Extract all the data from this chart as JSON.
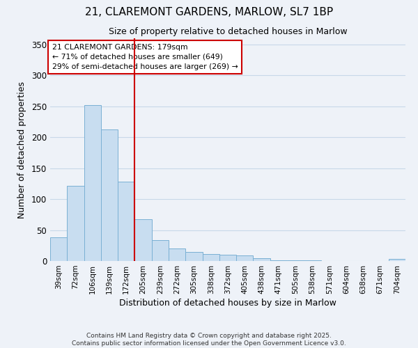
{
  "title_line1": "21, CLAREMONT GARDENS, MARLOW, SL7 1BP",
  "title_line2": "Size of property relative to detached houses in Marlow",
  "xlabel": "Distribution of detached houses by size in Marlow",
  "ylabel": "Number of detached properties",
  "categories": [
    "39sqm",
    "72sqm",
    "106sqm",
    "139sqm",
    "172sqm",
    "205sqm",
    "239sqm",
    "272sqm",
    "305sqm",
    "338sqm",
    "372sqm",
    "405sqm",
    "438sqm",
    "471sqm",
    "505sqm",
    "538sqm",
    "571sqm",
    "604sqm",
    "638sqm",
    "671sqm",
    "704sqm"
  ],
  "values": [
    38,
    122,
    252,
    213,
    128,
    68,
    34,
    20,
    15,
    11,
    10,
    9,
    4,
    1,
    1,
    1,
    0,
    0,
    0,
    0,
    3
  ],
  "bar_color": "#c8ddf0",
  "bar_edge_color": "#7ab0d4",
  "vline_x_index": 4,
  "annotation_title": "21 CLAREMONT GARDENS: 179sqm",
  "annotation_line2": "← 71% of detached houses are smaller (649)",
  "annotation_line3": "29% of semi-detached houses are larger (269) →",
  "annotation_box_color": "#ffffff",
  "annotation_box_edge": "#cc0000",
  "vline_color": "#cc0000",
  "grid_color": "#c8d8e8",
  "background_color": "#eef2f8",
  "footer_line1": "Contains HM Land Registry data © Crown copyright and database right 2025.",
  "footer_line2": "Contains public sector information licensed under the Open Government Licence v3.0.",
  "ylim": [
    0,
    360
  ],
  "yticks": [
    0,
    50,
    100,
    150,
    200,
    250,
    300,
    350
  ]
}
